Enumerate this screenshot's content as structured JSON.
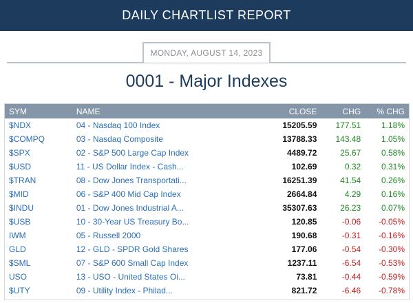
{
  "header": {
    "title": "DAILY CHARTLIST REPORT"
  },
  "date": "MONDAY, AUGUST 14, 2023",
  "list_title": "0001 - Major Indexes",
  "columns": {
    "sym": "SYM",
    "name": "NAME",
    "close": "CLOSE",
    "chg": "CHG",
    "pct": "% CHG"
  },
  "colors": {
    "header_bg": "#1d3b5c",
    "table_head_bg": "#8596a8",
    "link": "#2b6fb6",
    "positive": "#1f8a1f",
    "negative": "#c21e1e"
  },
  "rows": [
    {
      "sym": "$NDX",
      "name": "04 - Nasdaq 100 Index",
      "close": "15205.59",
      "chg": "177.51",
      "pct": "1.18%",
      "dir": "pos"
    },
    {
      "sym": "$COMPQ",
      "name": "03 - Nasdaq Composite",
      "close": "13788.33",
      "chg": "143.48",
      "pct": "1.05%",
      "dir": "pos"
    },
    {
      "sym": "$SPX",
      "name": "02 - S&P 500 Large Cap Index",
      "close": "4489.72",
      "chg": "25.67",
      "pct": "0.58%",
      "dir": "pos"
    },
    {
      "sym": "$USD",
      "name": "11 - US Dollar Index - Cash...",
      "close": "102.69",
      "chg": "0.32",
      "pct": "0.31%",
      "dir": "pos"
    },
    {
      "sym": "$TRAN",
      "name": "08 - Dow Jones Transportati...",
      "close": "16251.39",
      "chg": "41.54",
      "pct": "0.26%",
      "dir": "pos"
    },
    {
      "sym": "$MID",
      "name": "06 - S&P 400 Mid Cap Index",
      "close": "2664.84",
      "chg": "4.29",
      "pct": "0.16%",
      "dir": "pos"
    },
    {
      "sym": "$INDU",
      "name": "01 - Dow Jones Industrial A...",
      "close": "35307.63",
      "chg": "26.23",
      "pct": "0.07%",
      "dir": "pos"
    },
    {
      "sym": "$USB",
      "name": "10 - 30-Year US Treasury Bo...",
      "close": "120.85",
      "chg": "-0.06",
      "pct": "-0.05%",
      "dir": "neg"
    },
    {
      "sym": "IWM",
      "name": "05 - Russell 2000",
      "close": "190.68",
      "chg": "-0.31",
      "pct": "-0.16%",
      "dir": "neg"
    },
    {
      "sym": "GLD",
      "name": "12 - GLD - SPDR Gold Shares",
      "close": "177.06",
      "chg": "-0.54",
      "pct": "-0.30%",
      "dir": "neg"
    },
    {
      "sym": "$SML",
      "name": "07 - S&P 600 Small Cap Index",
      "close": "1237.11",
      "chg": "-6.54",
      "pct": "-0.53%",
      "dir": "neg"
    },
    {
      "sym": "USO",
      "name": "13 - USO - United States Oi...",
      "close": "73.81",
      "chg": "-0.44",
      "pct": "-0.59%",
      "dir": "neg"
    },
    {
      "sym": "$UTY",
      "name": "09 - Utility Index - Philad...",
      "close": "821.72",
      "chg": "-6.46",
      "pct": "-0.78%",
      "dir": "neg"
    }
  ]
}
